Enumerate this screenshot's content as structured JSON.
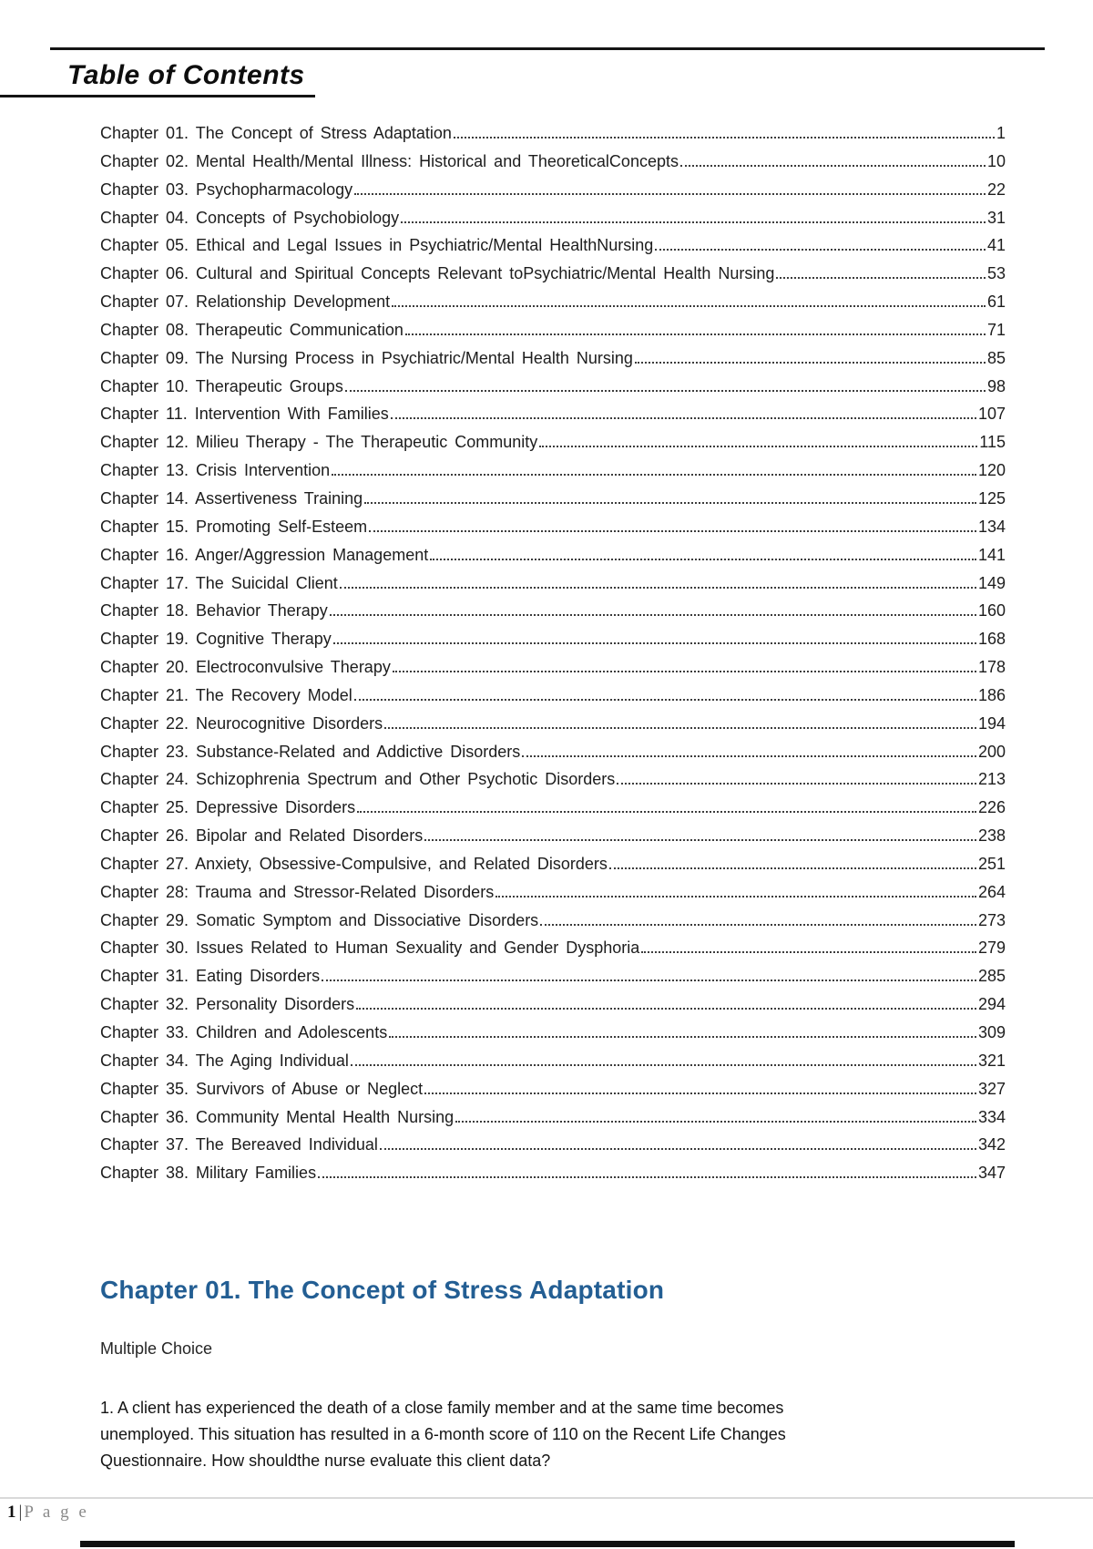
{
  "toc": {
    "title": "Table of Contents",
    "entries": [
      {
        "label": "Chapter 01. The Concept of Stress Adaptation",
        "page": "1"
      },
      {
        "label": "Chapter 02. Mental Health/Mental Illness: Historical and TheoreticalConcepts",
        "page": "10"
      },
      {
        "label": "Chapter 03. Psychopharmacology",
        "page": "22"
      },
      {
        "label": "Chapter 04. Concepts of Psychobiology",
        "page": "31"
      },
      {
        "label": "Chapter 05. Ethical and Legal Issues in Psychiatric/Mental HealthNursing",
        "page": "41"
      },
      {
        "label": "Chapter 06. Cultural and Spiritual Concepts Relevant toPsychiatric/Mental Health Nursing",
        "page": "53"
      },
      {
        "label": "Chapter 07. Relationship Development",
        "page": "61"
      },
      {
        "label": "Chapter 08. Therapeutic Communication",
        "page": "71"
      },
      {
        "label": "Chapter 09. The Nursing Process in Psychiatric/Mental Health Nursing",
        "page": "85"
      },
      {
        "label": "Chapter 10. Therapeutic Groups",
        "page": "98"
      },
      {
        "label": "Chapter 11. Intervention With Families",
        "page": "107"
      },
      {
        "label": "Chapter 12. Milieu Therapy - The Therapeutic Community",
        "page": "115"
      },
      {
        "label": "Chapter 13. Crisis Intervention",
        "page": "120"
      },
      {
        "label": "Chapter 14. Assertiveness Training",
        "page": "125"
      },
      {
        "label": "Chapter 15. Promoting Self-Esteem",
        "page": "134"
      },
      {
        "label": "Chapter 16. Anger/Aggression Management",
        "page": "141"
      },
      {
        "label": "Chapter 17. The Suicidal Client",
        "page": "149"
      },
      {
        "label": "Chapter 18. Behavior Therapy",
        "page": "160"
      },
      {
        "label": "Chapter 19. Cognitive Therapy",
        "page": "168"
      },
      {
        "label": "Chapter 20. Electroconvulsive Therapy",
        "page": "178"
      },
      {
        "label": "Chapter 21. The Recovery Model",
        "page": "186"
      },
      {
        "label": "Chapter 22. Neurocognitive Disorders",
        "page": "194"
      },
      {
        "label": "Chapter 23. Substance-Related and Addictive Disorders",
        "page": "200"
      },
      {
        "label": "Chapter 24. Schizophrenia Spectrum and Other Psychotic Disorders",
        "page": "213"
      },
      {
        "label": "Chapter 25. Depressive Disorders",
        "page": "226"
      },
      {
        "label": "Chapter 26. Bipolar and Related Disorders",
        "page": "238"
      },
      {
        "label": "Chapter 27. Anxiety, Obsessive-Compulsive, and Related Disorders",
        "page": "251"
      },
      {
        "label": "Chapter 28: Trauma and Stressor-Related Disorders",
        "page": "264"
      },
      {
        "label": "Chapter 29. Somatic Symptom and Dissociative Disorders",
        "page": "273"
      },
      {
        "label": "Chapter 30. Issues Related to Human Sexuality and Gender Dysphoria",
        "page": "279"
      },
      {
        "label": "Chapter 31. Eating Disorders",
        "page": "285"
      },
      {
        "label": "Chapter 32. Personality Disorders",
        "page": "294"
      },
      {
        "label": "Chapter 33. Children and Adolescents",
        "page": "309"
      },
      {
        "label": "Chapter 34. The Aging Individual",
        "page": "321"
      },
      {
        "label": "Chapter 35. Survivors of Abuse or Neglect",
        "page": "327"
      },
      {
        "label": "Chapter 36. Community Mental Health Nursing",
        "page": "334"
      },
      {
        "label": "Chapter 37. The Bereaved Individual",
        "page": "342"
      },
      {
        "label": "Chapter 38. Military Families",
        "page": "347"
      }
    ]
  },
  "chapter_section": {
    "title": "Chapter 01. The Concept of Stress Adaptation",
    "subtitle": "Multiple Choice",
    "question": "1. A client has experienced the death of a close family member and at the same time becomes\nunemployed. This situation has resulted in a 6-month score of 110 on the Recent Life Changes\nQuestionnaire. How shouldthe nurse evaluate this client data?"
  },
  "footer": {
    "page_number": "1",
    "separator": "|",
    "page_word": "P a g e"
  },
  "colors": {
    "chapter_heading_blue": "#235E93"
  }
}
